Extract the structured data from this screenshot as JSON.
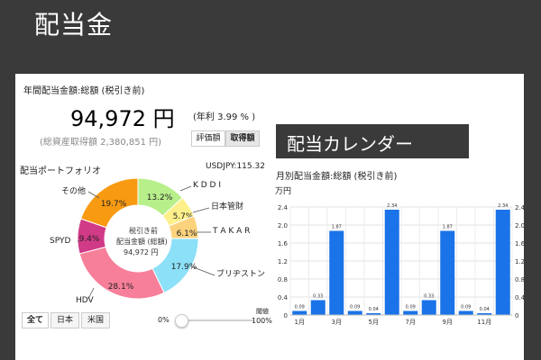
{
  "title": "配当金",
  "summary": {
    "heading": "年間配当金額:総額 (税引き前)",
    "amount": "94,972 円",
    "yield": "(年利 3.99 % )",
    "cost_basis": "(総資産取得額 2,380,851 円)",
    "toggle": {
      "options": [
        "評価額",
        "取得額"
      ],
      "selected": "取得額"
    }
  },
  "portfolio": {
    "heading": "配当ポートフォリオ",
    "fx_rate": "USDJPY:115.32",
    "center_lines": [
      "税引き前",
      "配当金額 (総額)",
      "94,972 円"
    ],
    "filter": {
      "options": [
        "全て",
        "日本",
        "米国"
      ],
      "selected": "全て"
    },
    "threshold": {
      "label": "閾値",
      "min_label": "0%",
      "max_label": "100%",
      "value": 0
    }
  },
  "calendar": {
    "title": "配当カレンダー",
    "heading": "月別配当金額:総額 (税引き前)",
    "unit": "万円"
  },
  "chart_data": [
    {
      "type": "pie",
      "title": "",
      "slices": [
        {
          "label": "KDDI",
          "pct_label": "13.2%",
          "value": 13.2,
          "color": "#b7ef8a"
        },
        {
          "label": "日本管財",
          "pct_label": "5.7%",
          "value": 5.7,
          "color": "#fdf08a"
        },
        {
          "label": "TAKAR",
          "pct_label": "6.1%",
          "value": 6.1,
          "color": "#fcd27c"
        },
        {
          "label": "ブリヂストン",
          "pct_label": "17.9%",
          "value": 17.9,
          "color": "#8ce0f7"
        },
        {
          "label": "HDV",
          "pct_label": "28.1%",
          "value": 28.1,
          "color": "#f77f9a"
        },
        {
          "label": "SPYD",
          "pct_label": "9.4%",
          "value": 9.4,
          "color": "#d13a87"
        },
        {
          "label": "その他",
          "pct_label": "19.7%",
          "value": 19.7,
          "color": "#f89a12"
        }
      ]
    },
    {
      "type": "bar",
      "title": "",
      "categories": [
        "1月",
        "2月",
        "3月",
        "4月",
        "5月",
        "6月",
        "7月",
        "8月",
        "9月",
        "10月",
        "11月",
        "12月"
      ],
      "x_tick_labels": [
        "1月",
        "",
        "3月",
        "",
        "5月",
        "",
        "7月",
        "",
        "9月",
        "",
        "11月",
        ""
      ],
      "values": [
        0.09,
        0.33,
        1.87,
        0.09,
        0.04,
        2.34,
        0.09,
        0.33,
        1.87,
        0.09,
        0.04,
        2.34
      ],
      "value_labels": [
        "0.09",
        "0.33",
        "1.87",
        "0.09",
        "0.04",
        "2.34",
        "0.09",
        "0.33",
        "1.87",
        "0.09",
        "0.04",
        "2.34"
      ],
      "ylim": [
        0,
        2.4
      ],
      "y_ticks": [
        "0",
        "0.4",
        "0.8",
        "1.2",
        "1.6",
        "2.0",
        "2.4"
      ],
      "grid": true,
      "bar_color": "#1a73e8"
    }
  ]
}
